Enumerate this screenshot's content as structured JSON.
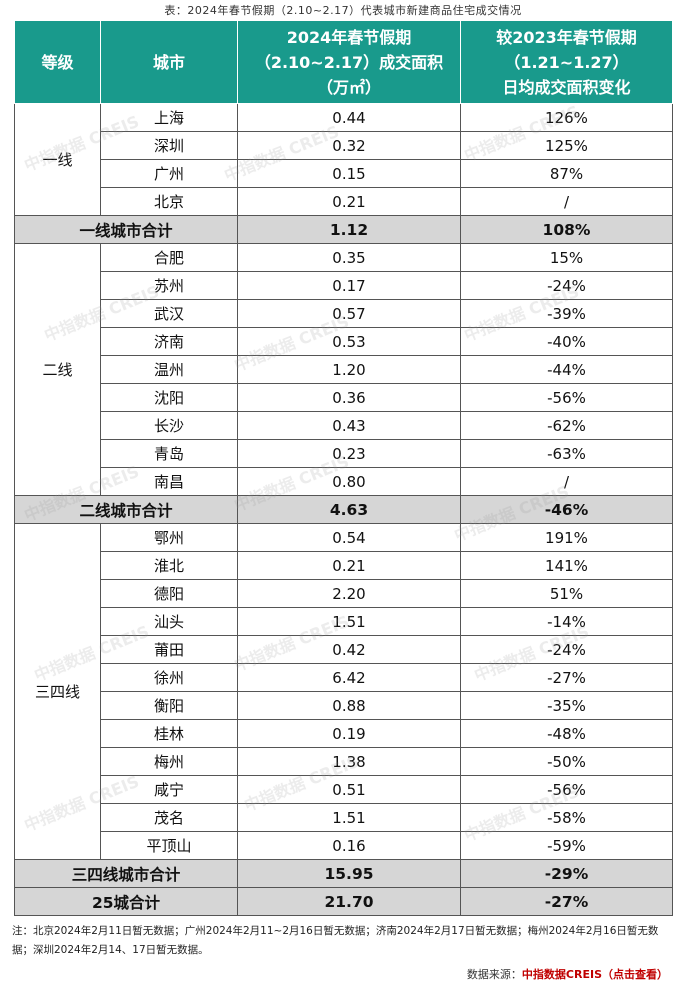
{
  "caption": "表：2024年春节假期（2.10~2.17）代表城市新建商品住宅成交情况",
  "table": {
    "headers": [
      [
        "等级"
      ],
      [
        "城市"
      ],
      [
        "2024年春节假期",
        "（2.10~2.17）成交面积",
        "（万㎡）"
      ],
      [
        "较2023年春节假期",
        "（1.21~1.27）",
        "日均成交面积变化"
      ]
    ],
    "groups": [
      {
        "tier": "一线",
        "rows": [
          [
            "上海",
            "0.44",
            "126%"
          ],
          [
            "深圳",
            "0.32",
            "125%"
          ],
          [
            "广州",
            "0.15",
            "87%"
          ],
          [
            "北京",
            "0.21",
            "/"
          ]
        ],
        "total": [
          "一线城市合计",
          "1.12",
          "108%"
        ]
      },
      {
        "tier": "二线",
        "rows": [
          [
            "合肥",
            "0.35",
            "15%"
          ],
          [
            "苏州",
            "0.17",
            "-24%"
          ],
          [
            "武汉",
            "0.57",
            "-39%"
          ],
          [
            "济南",
            "0.53",
            "-40%"
          ],
          [
            "温州",
            "1.20",
            "-44%"
          ],
          [
            "沈阳",
            "0.36",
            "-56%"
          ],
          [
            "长沙",
            "0.43",
            "-62%"
          ],
          [
            "青岛",
            "0.23",
            "-63%"
          ],
          [
            "南昌",
            "0.80",
            "/"
          ]
        ],
        "total": [
          "二线城市合计",
          "4.63",
          "-46%"
        ]
      },
      {
        "tier": "三四线",
        "rows": [
          [
            "鄂州",
            "0.54",
            "191%"
          ],
          [
            "淮北",
            "0.21",
            "141%"
          ],
          [
            "德阳",
            "2.20",
            "51%"
          ],
          [
            "汕头",
            "1.51",
            "-14%"
          ],
          [
            "莆田",
            "0.42",
            "-24%"
          ],
          [
            "徐州",
            "6.42",
            "-27%"
          ],
          [
            "衡阳",
            "0.88",
            "-35%"
          ],
          [
            "桂林",
            "0.19",
            "-48%"
          ],
          [
            "梅州",
            "1.38",
            "-50%"
          ],
          [
            "咸宁",
            "0.51",
            "-56%"
          ],
          [
            "茂名",
            "1.51",
            "-58%"
          ],
          [
            "平顶山",
            "0.16",
            "-59%"
          ]
        ],
        "total": [
          "三四线城市合计",
          "15.95",
          "-29%"
        ]
      }
    ],
    "grand_total": [
      "25城合计",
      "21.70",
      "-27%"
    ]
  },
  "footnote": "注：北京2024年2月11日暂无数据；广州2024年2月11~2月16日暂无数据；济南2024年2月17日暂无数据；梅州2024年2月16日暂无数据；深圳2024年2月14、17日暂无数据。",
  "source_label": "数据来源：",
  "source": "中指数据CREIS（点击查看）",
  "watermark": "中指数据 CREIS"
}
